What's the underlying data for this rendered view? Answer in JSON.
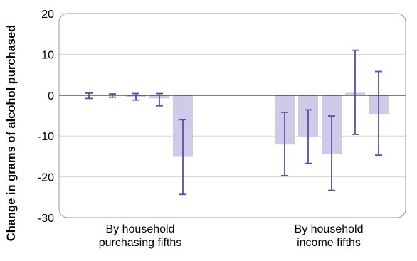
{
  "chart_data": {
    "type": "bar",
    "ylabel": "Change in grams of alcohol purchased",
    "ylim": [
      -30,
      20
    ],
    "yticks": [
      20,
      10,
      0,
      -10,
      -20,
      -30
    ],
    "grid": true,
    "groups": [
      {
        "label_lines": [
          "By household",
          "purchasing fifths"
        ],
        "bars": [
          {
            "value": 0,
            "ci_low": -0.8,
            "ci_high": 0.5
          },
          {
            "value": 0,
            "ci_low": -0.5,
            "ci_high": 0.3
          },
          {
            "value": -0.4,
            "ci_low": -1.2,
            "ci_high": 0.4
          },
          {
            "value": -0.8,
            "ci_low": -2.6,
            "ci_high": 0.4
          },
          {
            "value": -15.1,
            "ci_low": -24.3,
            "ci_high": -6.0
          }
        ]
      },
      {
        "label_lines": [
          "By household",
          "income fifths"
        ],
        "bars": [
          {
            "value": -12.1,
            "ci_low": -19.7,
            "ci_high": -4.2
          },
          {
            "value": -10.2,
            "ci_low": -16.7,
            "ci_high": -3.6
          },
          {
            "value": -14.4,
            "ci_low": -23.3,
            "ci_high": -5.1
          },
          {
            "value": 0.6,
            "ci_low": -9.6,
            "ci_high": 11.0
          },
          {
            "value": -4.7,
            "ci_low": -14.7,
            "ci_high": 5.8
          }
        ]
      }
    ],
    "colors": {
      "bar": "#cdcbe8",
      "error_bar": "#5a4ea0",
      "grid": "#d6d6d6",
      "zero_line": "#000000",
      "frame": "#9a9a9a"
    }
  }
}
